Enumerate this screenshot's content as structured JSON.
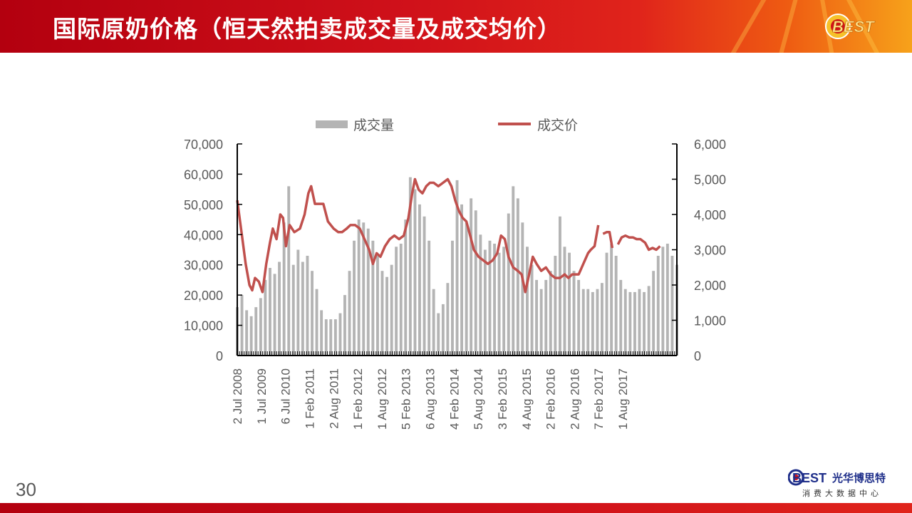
{
  "header": {
    "title": "国际原奶价格（恒天然拍卖成交量及成交均价）",
    "badge_text": "BEST"
  },
  "page_number": "30",
  "footer": {
    "logo_mark": "BEST",
    "logo_name": "光华博思特",
    "logo_sub": "消费大数据中心"
  },
  "colors": {
    "header_red": "#d0111a",
    "bar_gray": "#b4b4b4",
    "line_red": "#c0504d",
    "logo_blue": "#1f2f8a"
  },
  "chart_data": {
    "type": "bar+line",
    "title": "",
    "legend": [
      "成交量",
      "成交价"
    ],
    "legend_position": "top",
    "x_tick_labels": [
      "2 Jul 2008",
      "1 Jul 2009",
      "6 Jul 2010",
      "1 Feb 2011",
      "2 Aug 2011",
      "1 Feb 2012",
      "1 Aug 2012",
      "5 Feb 2013",
      "6 Aug 2013",
      "4 Feb 2014",
      "5 Aug 2014",
      "3 Feb 2015",
      "4 Aug 2015",
      "2 Feb 2016",
      "2 Aug 2016",
      "7 Feb 2017",
      "1 Aug 2017"
    ],
    "x_range": [
      2008.5,
      2017.9
    ],
    "y_left": {
      "min": 0,
      "max": 70000,
      "ticks": [
        "0",
        "10,000",
        "20,000",
        "30,000",
        "40,000",
        "50,000",
        "60,000",
        "70,000"
      ]
    },
    "y_right": {
      "min": 0,
      "max": 6000,
      "ticks": [
        "0",
        "1,000",
        "2,000",
        "3,000",
        "4,000",
        "5,000",
        "6,000"
      ]
    },
    "grid": false,
    "series": [
      {
        "name": "成交量",
        "kind": "bar",
        "axis": "left",
        "points": [
          [
            2008.5,
            16000
          ],
          [
            2008.6,
            20000
          ],
          [
            2008.7,
            15000
          ],
          [
            2008.8,
            13000
          ],
          [
            2008.9,
            16000
          ],
          [
            2009.0,
            19000
          ],
          [
            2009.1,
            25000
          ],
          [
            2009.2,
            29000
          ],
          [
            2009.3,
            27000
          ],
          [
            2009.4,
            31000
          ],
          [
            2009.5,
            44000
          ],
          [
            2009.6,
            56000
          ],
          [
            2009.7,
            30000
          ],
          [
            2009.8,
            35000
          ],
          [
            2009.9,
            31000
          ],
          [
            2010.0,
            33000
          ],
          [
            2010.1,
            28000
          ],
          [
            2010.2,
            22000
          ],
          [
            2010.3,
            15000
          ],
          [
            2010.4,
            12000
          ],
          [
            2010.5,
            12000
          ],
          [
            2010.6,
            12000
          ],
          [
            2010.7,
            14000
          ],
          [
            2010.8,
            20000
          ],
          [
            2010.9,
            28000
          ],
          [
            2011.0,
            38000
          ],
          [
            2011.1,
            45000
          ],
          [
            2011.2,
            44000
          ],
          [
            2011.3,
            42000
          ],
          [
            2011.4,
            38000
          ],
          [
            2011.5,
            33000
          ],
          [
            2011.6,
            28000
          ],
          [
            2011.7,
            26000
          ],
          [
            2011.8,
            30000
          ],
          [
            2011.9,
            36000
          ],
          [
            2012.0,
            37000
          ],
          [
            2012.1,
            45000
          ],
          [
            2012.2,
            59000
          ],
          [
            2012.3,
            55000
          ],
          [
            2012.4,
            50000
          ],
          [
            2012.5,
            46000
          ],
          [
            2012.6,
            38000
          ],
          [
            2012.7,
            22000
          ],
          [
            2012.8,
            14000
          ],
          [
            2012.9,
            17000
          ],
          [
            2013.0,
            24000
          ],
          [
            2013.1,
            38000
          ],
          [
            2013.2,
            58000
          ],
          [
            2013.3,
            50000
          ],
          [
            2013.4,
            44000
          ],
          [
            2013.5,
            52000
          ],
          [
            2013.6,
            48000
          ],
          [
            2013.7,
            40000
          ],
          [
            2013.8,
            35000
          ],
          [
            2013.9,
            38000
          ],
          [
            2014.0,
            37000
          ],
          [
            2014.1,
            34000
          ],
          [
            2014.2,
            36000
          ],
          [
            2014.3,
            47000
          ],
          [
            2014.4,
            56000
          ],
          [
            2014.5,
            52000
          ],
          [
            2014.6,
            44000
          ],
          [
            2014.7,
            36000
          ],
          [
            2014.8,
            30000
          ],
          [
            2014.9,
            25000
          ],
          [
            2015.0,
            22000
          ],
          [
            2015.1,
            25000
          ],
          [
            2015.2,
            28000
          ],
          [
            2015.3,
            33000
          ],
          [
            2015.4,
            46000
          ],
          [
            2015.5,
            36000
          ],
          [
            2015.6,
            34000
          ],
          [
            2015.7,
            28000
          ],
          [
            2015.8,
            25000
          ],
          [
            2015.9,
            22000
          ],
          [
            2016.0,
            22000
          ],
          [
            2016.1,
            21000
          ],
          [
            2016.2,
            22000
          ],
          [
            2016.3,
            24000
          ],
          [
            2016.4,
            34000
          ],
          [
            2016.5,
            37000
          ],
          [
            2016.6,
            33000
          ],
          [
            2016.7,
            25000
          ],
          [
            2016.8,
            22000
          ],
          [
            2016.9,
            21000
          ],
          [
            2017.0,
            21000
          ],
          [
            2017.1,
            22000
          ],
          [
            2017.2,
            21000
          ],
          [
            2017.3,
            23000
          ],
          [
            2017.4,
            28000
          ],
          [
            2017.5,
            33000
          ],
          [
            2017.6,
            36000
          ],
          [
            2017.7,
            37000
          ],
          [
            2017.8,
            33000
          ],
          [
            2017.9,
            30000
          ]
        ]
      },
      {
        "name": "成交价",
        "kind": "line",
        "axis": "right",
        "segments": [
          [
            [
              2008.5,
              4400
            ],
            [
              2008.6,
              3400
            ],
            [
              2008.68,
              2600
            ],
            [
              2008.76,
              2000
            ],
            [
              2008.82,
              1850
            ],
            [
              2008.88,
              2200
            ],
            [
              2008.96,
              2100
            ],
            [
              2009.04,
              1800
            ],
            [
              2009.12,
              2600
            ],
            [
              2009.2,
              3200
            ],
            [
              2009.26,
              3600
            ],
            [
              2009.34,
              3300
            ],
            [
              2009.42,
              4000
            ],
            [
              2009.48,
              3900
            ],
            [
              2009.54,
              3100
            ],
            [
              2009.62,
              3700
            ],
            [
              2009.72,
              3500
            ],
            [
              2009.84,
              3600
            ],
            [
              2009.94,
              4000
            ],
            [
              2010.02,
              4600
            ],
            [
              2010.08,
              4800
            ],
            [
              2010.16,
              4300
            ],
            [
              2010.26,
              4300
            ],
            [
              2010.34,
              4300
            ],
            [
              2010.44,
              3800
            ],
            [
              2010.56,
              3600
            ],
            [
              2010.66,
              3500
            ],
            [
              2010.74,
              3500
            ],
            [
              2010.84,
              3600
            ],
            [
              2010.92,
              3700
            ],
            [
              2011.02,
              3700
            ],
            [
              2011.12,
              3600
            ],
            [
              2011.22,
              3300
            ],
            [
              2011.32,
              3000
            ],
            [
              2011.4,
              2600
            ],
            [
              2011.48,
              2900
            ],
            [
              2011.56,
              2800
            ],
            [
              2011.66,
              3100
            ],
            [
              2011.76,
              3300
            ],
            [
              2011.86,
              3400
            ],
            [
              2011.96,
              3300
            ],
            [
              2012.06,
              3400
            ],
            [
              2012.16,
              3900
            ],
            [
              2012.24,
              4600
            ],
            [
              2012.3,
              5000
            ],
            [
              2012.38,
              4700
            ],
            [
              2012.46,
              4600
            ],
            [
              2012.54,
              4800
            ],
            [
              2012.62,
              4900
            ],
            [
              2012.7,
              4900
            ],
            [
              2012.8,
              4800
            ],
            [
              2012.9,
              4900
            ],
            [
              2013.0,
              5000
            ],
            [
              2013.08,
              4800
            ],
            [
              2013.16,
              4400
            ],
            [
              2013.24,
              4100
            ],
            [
              2013.32,
              3900
            ],
            [
              2013.4,
              3800
            ],
            [
              2013.48,
              3400
            ],
            [
              2013.56,
              3000
            ],
            [
              2013.66,
              2800
            ],
            [
              2013.76,
              2700
            ],
            [
              2013.86,
              2600
            ],
            [
              2013.96,
              2700
            ],
            [
              2014.06,
              2900
            ],
            [
              2014.14,
              3400
            ],
            [
              2014.22,
              3300
            ],
            [
              2014.3,
              2800
            ],
            [
              2014.4,
              2500
            ],
            [
              2014.5,
              2400
            ],
            [
              2014.58,
              2300
            ],
            [
              2014.66,
              1800
            ],
            [
              2014.74,
              2300
            ],
            [
              2014.82,
              2800
            ],
            [
              2014.9,
              2600
            ],
            [
              2015.0,
              2400
            ],
            [
              2015.1,
              2500
            ],
            [
              2015.2,
              2300
            ],
            [
              2015.3,
              2200
            ],
            [
              2015.4,
              2200
            ],
            [
              2015.5,
              2300
            ],
            [
              2015.58,
              2200
            ],
            [
              2015.66,
              2300
            ],
            [
              2015.74,
              2300
            ],
            [
              2015.8,
              2300
            ],
            [
              2015.9,
              2600
            ],
            [
              2016.0,
              2900
            ],
            [
              2016.06,
              3000
            ],
            [
              2016.14,
              3100
            ],
            [
              2016.22,
              3700
            ]
          ],
          [
            [
              2016.32,
              3450
            ],
            [
              2016.4,
              3500
            ],
            [
              2016.46,
              3500
            ],
            [
              2016.52,
              3050
            ]
          ],
          [
            [
              2016.64,
              3150
            ],
            [
              2016.72,
              3350
            ],
            [
              2016.8,
              3400
            ],
            [
              2016.88,
              3350
            ],
            [
              2016.96,
              3350
            ],
            [
              2017.04,
              3300
            ],
            [
              2017.12,
              3300
            ],
            [
              2017.22,
              3200
            ],
            [
              2017.3,
              3000
            ],
            [
              2017.38,
              3050
            ],
            [
              2017.46,
              3000
            ],
            [
              2017.54,
              3100
            ]
          ]
        ]
      }
    ]
  }
}
